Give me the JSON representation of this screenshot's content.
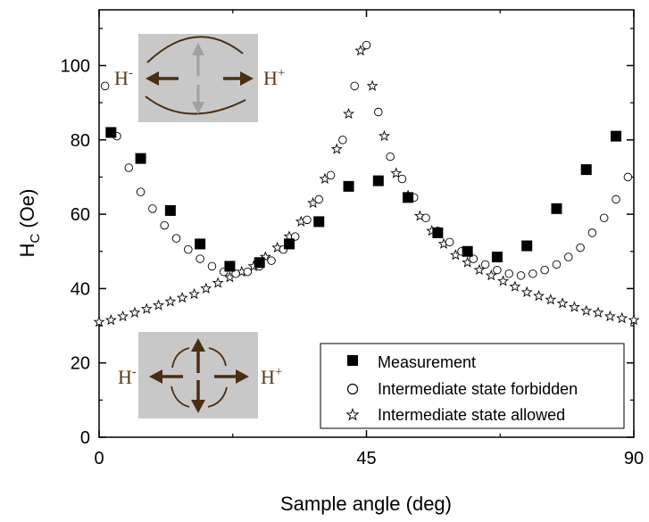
{
  "chart_data": {
    "type": "scatter",
    "title": "",
    "xlabel": "Sample angle (deg)",
    "ylabel_main": "H",
    "ylabel_sub": "C",
    "ylabel_unit": " (Oe)",
    "xlim": [
      0,
      90
    ],
    "ylim": [
      0,
      115
    ],
    "xticks": [
      0,
      45,
      90
    ],
    "xtick_labels": [
      "0",
      "45",
      "90"
    ],
    "yticks": [
      0,
      20,
      40,
      60,
      80,
      100
    ],
    "ytick_labels": [
      "0",
      "20",
      "40",
      "60",
      "80",
      "100"
    ],
    "grid": false,
    "legend_position": "bottom-right",
    "series": [
      {
        "name": "Measurement",
        "marker": "filled-square",
        "x": [
          2,
          7,
          12,
          17,
          22,
          27,
          32,
          37,
          42,
          47,
          52,
          57,
          62,
          67,
          72,
          77,
          82,
          87
        ],
        "y": [
          82,
          75,
          61,
          52,
          46,
          47,
          52,
          58,
          67.5,
          69,
          64.5,
          55,
          50,
          48.5,
          51.5,
          61.5,
          72,
          81
        ]
      },
      {
        "name": "Intermediate state forbidden",
        "marker": "open-circle",
        "x": [
          1,
          3,
          5,
          7,
          9,
          11,
          13,
          15,
          17,
          19,
          21,
          23,
          25,
          27,
          29,
          31,
          33,
          35,
          37,
          39,
          41,
          43,
          45,
          47,
          49,
          51,
          53,
          55,
          57,
          59,
          61,
          63,
          65,
          67,
          69,
          71,
          73,
          75,
          77,
          79,
          81,
          83,
          85,
          87,
          89
        ],
        "y": [
          94.5,
          81,
          72.5,
          66,
          61.5,
          57,
          53.5,
          50.5,
          48,
          46,
          44.5,
          44,
          44.5,
          46,
          47.5,
          50.5,
          54,
          58.5,
          64,
          70.5,
          80,
          94.5,
          105.5,
          87.5,
          75.5,
          69.5,
          64.5,
          59,
          55.5,
          52.5,
          50,
          48,
          46.5,
          45,
          44,
          43.5,
          44,
          45,
          46.5,
          48.5,
          51,
          55,
          59,
          64,
          70
        ]
      },
      {
        "name": "Intermediate state allowed",
        "marker": "open-star",
        "x": [
          0,
          2,
          4,
          6,
          8,
          10,
          12,
          14,
          16,
          18,
          20,
          22,
          24,
          26,
          28,
          30,
          32,
          34,
          36,
          38,
          40,
          42,
          44,
          46,
          48,
          50,
          52,
          54,
          56,
          58,
          60,
          62,
          64,
          66,
          68,
          70,
          72,
          74,
          76,
          78,
          80,
          82,
          84,
          86,
          88,
          90
        ],
        "y": [
          31,
          31.5,
          32.5,
          33.5,
          34.5,
          35.5,
          36.5,
          37.5,
          38.5,
          40,
          41.5,
          43,
          44.5,
          46,
          48.5,
          51,
          54,
          58,
          63,
          69.5,
          77.5,
          87,
          104,
          94.5,
          81,
          71,
          65,
          59.5,
          55.5,
          52,
          49,
          47,
          45,
          43.5,
          42,
          40.5,
          39,
          38,
          37,
          36,
          35,
          34,
          33.5,
          32.5,
          32,
          31.5
        ]
      }
    ],
    "legend": [
      {
        "label": "Measurement"
      },
      {
        "label": "Intermediate state forbidden"
      },
      {
        "label": "Intermediate state allowed"
      }
    ],
    "insets": [
      {
        "left_label": "H",
        "left_sup": "-",
        "right_label": "H",
        "right_sup": "+"
      },
      {
        "left_label": "H",
        "left_sup": "-",
        "right_label": "H",
        "right_sup": "+"
      }
    ],
    "colors": {
      "inset_background": "#c8c8c8",
      "inset_arrow": "#4a2e14",
      "inset_arrow_gray": "#a0a0a0",
      "marker": "#000000"
    }
  }
}
